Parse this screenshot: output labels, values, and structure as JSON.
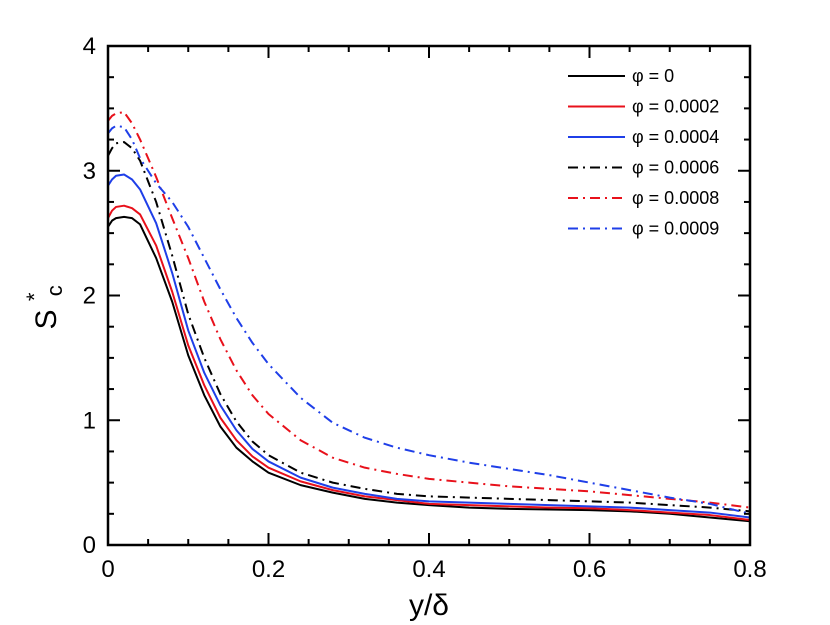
{
  "chart_data": {
    "type": "line",
    "title": "",
    "xlabel": "y/δ",
    "ylabel": {
      "main": "S",
      "sup": "*",
      "sub": "c"
    },
    "xlim": [
      0,
      0.8
    ],
    "ylim": [
      0,
      4
    ],
    "xticks": [
      "0",
      "0.2",
      "0.4",
      "0.6",
      "0.8"
    ],
    "yticks": [
      "0",
      "1",
      "2",
      "3",
      "4"
    ],
    "xtick_values": [
      0,
      0.2,
      0.4,
      0.6,
      0.8
    ],
    "ytick_values": [
      0,
      1,
      2,
      3,
      4
    ],
    "grid": false,
    "legend_position": "top-right",
    "series": [
      {
        "name": "φ = 0",
        "color": "#000000",
        "dash": "solid",
        "x": [
          0,
          0.005,
          0.01,
          0.02,
          0.03,
          0.04,
          0.06,
          0.08,
          0.1,
          0.12,
          0.14,
          0.16,
          0.18,
          0.2,
          0.24,
          0.28,
          0.32,
          0.36,
          0.4,
          0.45,
          0.5,
          0.55,
          0.6,
          0.65,
          0.7,
          0.75,
          0.8
        ],
        "y": [
          2.55,
          2.6,
          2.62,
          2.63,
          2.62,
          2.57,
          2.3,
          1.95,
          1.52,
          1.2,
          0.95,
          0.78,
          0.67,
          0.58,
          0.48,
          0.42,
          0.37,
          0.34,
          0.32,
          0.3,
          0.29,
          0.285,
          0.28,
          0.27,
          0.25,
          0.22,
          0.19
        ]
      },
      {
        "name": "φ = 0.0002",
        "color": "#e8111b",
        "dash": "solid",
        "x": [
          0,
          0.005,
          0.01,
          0.02,
          0.03,
          0.04,
          0.06,
          0.08,
          0.1,
          0.12,
          0.14,
          0.16,
          0.18,
          0.2,
          0.24,
          0.28,
          0.32,
          0.36,
          0.4,
          0.45,
          0.5,
          0.55,
          0.6,
          0.65,
          0.7,
          0.75,
          0.8
        ],
        "y": [
          2.62,
          2.68,
          2.71,
          2.72,
          2.7,
          2.65,
          2.4,
          2.03,
          1.6,
          1.28,
          1.02,
          0.84,
          0.71,
          0.62,
          0.51,
          0.44,
          0.39,
          0.36,
          0.33,
          0.32,
          0.31,
          0.3,
          0.295,
          0.28,
          0.26,
          0.24,
          0.2
        ]
      },
      {
        "name": "φ = 0.0004",
        "color": "#1f3fe8",
        "dash": "solid",
        "x": [
          0,
          0.005,
          0.01,
          0.02,
          0.03,
          0.04,
          0.06,
          0.08,
          0.1,
          0.12,
          0.14,
          0.16,
          0.18,
          0.2,
          0.24,
          0.28,
          0.32,
          0.36,
          0.4,
          0.45,
          0.5,
          0.55,
          0.6,
          0.65,
          0.7,
          0.75,
          0.8
        ],
        "y": [
          2.88,
          2.93,
          2.96,
          2.97,
          2.93,
          2.85,
          2.58,
          2.18,
          1.72,
          1.38,
          1.12,
          0.92,
          0.77,
          0.67,
          0.54,
          0.46,
          0.41,
          0.37,
          0.35,
          0.34,
          0.33,
          0.32,
          0.31,
          0.3,
          0.28,
          0.26,
          0.22
        ]
      },
      {
        "name": "φ = 0.0006",
        "color": "#000000",
        "dash": "10,5,2,5",
        "x": [
          0,
          0.005,
          0.01,
          0.02,
          0.03,
          0.04,
          0.06,
          0.08,
          0.1,
          0.12,
          0.14,
          0.16,
          0.18,
          0.2,
          0.24,
          0.28,
          0.32,
          0.36,
          0.4,
          0.45,
          0.5,
          0.55,
          0.6,
          0.65,
          0.7,
          0.75,
          0.8
        ],
        "y": [
          3.12,
          3.18,
          3.22,
          3.23,
          3.18,
          3.08,
          2.75,
          2.32,
          1.85,
          1.5,
          1.21,
          0.99,
          0.83,
          0.72,
          0.58,
          0.5,
          0.45,
          0.41,
          0.39,
          0.38,
          0.37,
          0.36,
          0.35,
          0.34,
          0.32,
          0.3,
          0.27
        ]
      },
      {
        "name": "φ = 0.0008",
        "color": "#e8111b",
        "dash": "10,5,2,5",
        "x": [
          0,
          0.005,
          0.01,
          0.02,
          0.03,
          0.04,
          0.06,
          0.08,
          0.1,
          0.12,
          0.14,
          0.16,
          0.18,
          0.2,
          0.24,
          0.28,
          0.32,
          0.36,
          0.4,
          0.45,
          0.5,
          0.55,
          0.6,
          0.65,
          0.7,
          0.75,
          0.8
        ],
        "y": [
          3.4,
          3.44,
          3.46,
          3.47,
          3.38,
          3.25,
          2.95,
          2.62,
          2.3,
          1.95,
          1.65,
          1.4,
          1.2,
          1.05,
          0.84,
          0.7,
          0.62,
          0.57,
          0.53,
          0.5,
          0.47,
          0.45,
          0.43,
          0.4,
          0.37,
          0.34,
          0.3
        ]
      },
      {
        "name": "φ = 0.0009",
        "color": "#1f3fe8",
        "dash": "10,5,2,5",
        "x": [
          0,
          0.005,
          0.01,
          0.02,
          0.03,
          0.04,
          0.06,
          0.08,
          0.1,
          0.12,
          0.14,
          0.16,
          0.18,
          0.2,
          0.24,
          0.28,
          0.32,
          0.36,
          0.4,
          0.45,
          0.5,
          0.55,
          0.6,
          0.65,
          0.7,
          0.75,
          0.8
        ],
        "y": [
          3.3,
          3.34,
          3.36,
          3.35,
          3.25,
          3.1,
          2.9,
          2.75,
          2.55,
          2.3,
          2.05,
          1.82,
          1.62,
          1.45,
          1.18,
          0.98,
          0.86,
          0.78,
          0.72,
          0.66,
          0.61,
          0.56,
          0.5,
          0.44,
          0.38,
          0.33,
          0.25
        ]
      }
    ]
  }
}
